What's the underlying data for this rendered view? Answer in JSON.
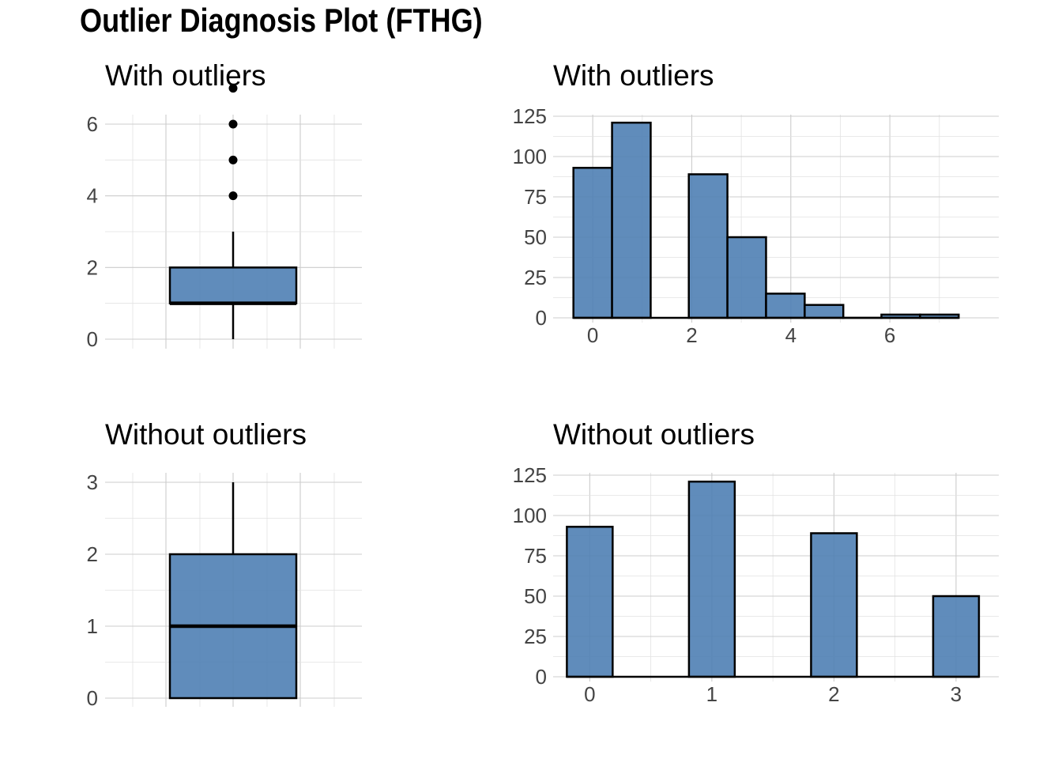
{
  "title": "Outlier Diagnosis Plot (FTHG)",
  "colors": {
    "fill": "#4f7fb4",
    "outline": "#000000",
    "grid": "#cccccc",
    "text": "#444444"
  },
  "chart_data": [
    {
      "type": "boxplot",
      "title": "With outliers",
      "ylim": [
        0,
        7.3
      ],
      "y_ticks": [
        0,
        2,
        4,
        6
      ],
      "stats": {
        "min": 0,
        "q1": 1,
        "median": 1,
        "q3": 2,
        "max": 3
      },
      "outliers": [
        4,
        5,
        6,
        7
      ],
      "grid": true
    },
    {
      "type": "bar",
      "title": "With outliers",
      "x": [
        0,
        0.78,
        2.33,
        3.11,
        3.89,
        4.67,
        5.44,
        6.22,
        7.0
      ],
      "values": [
        93,
        121,
        89,
        50,
        15,
        8,
        0,
        2,
        2
      ],
      "bin_width": 0.78,
      "xlim": [
        -0.8,
        8.2
      ],
      "x_ticks": [
        0,
        2,
        4,
        6
      ],
      "ylim": [
        0,
        128
      ],
      "y_ticks": [
        0,
        25,
        50,
        75,
        100,
        125
      ],
      "grid": true
    },
    {
      "type": "boxplot",
      "title": "Without outliers",
      "ylim": [
        0,
        3.1
      ],
      "y_ticks": [
        0,
        1,
        2,
        3
      ],
      "stats": {
        "min": 0,
        "q1": 0,
        "median": 1,
        "q3": 2,
        "max": 3
      },
      "outliers": [],
      "grid": true
    },
    {
      "type": "bar",
      "title": "Without outliers",
      "x": [
        0,
        1,
        2,
        3
      ],
      "values": [
        93,
        121,
        89,
        50
      ],
      "bin_width": 0.375,
      "xlim": [
        -0.3,
        3.35
      ],
      "x_ticks": [
        0,
        1,
        2,
        3
      ],
      "ylim": [
        0,
        128
      ],
      "y_ticks": [
        0,
        25,
        50,
        75,
        100,
        125
      ],
      "grid": true
    }
  ]
}
